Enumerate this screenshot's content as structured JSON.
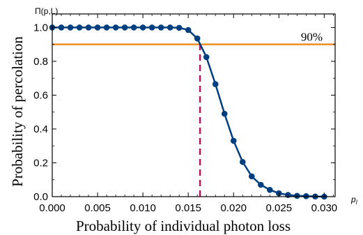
{
  "chart_data": {
    "type": "line",
    "title": "",
    "xlabel": "Probability of individual photon loss",
    "ylabel": "Probability of percolation",
    "y_corner_label": "Π(p,L)",
    "x_corner_label": "p_l",
    "xlim": [
      0.0,
      0.0312
    ],
    "ylim": [
      0.0,
      1.08
    ],
    "x_ticks": [
      0.0,
      0.005,
      0.01,
      0.015,
      0.02,
      0.025,
      0.03
    ],
    "x_tick_labels": [
      "0.000",
      "0.005",
      "0.010",
      "0.015",
      "0.020",
      "0.025",
      "0.030"
    ],
    "y_ticks": [
      0.0,
      0.2,
      0.4,
      0.6,
      0.8,
      1.0
    ],
    "y_tick_labels": [
      "0.0",
      "0.2",
      "0.4",
      "0.6",
      "0.8",
      "1.0"
    ],
    "grid": false,
    "series": [
      {
        "color": "#003f7f",
        "x": [
          0.0,
          0.001,
          0.002,
          0.003,
          0.004,
          0.005,
          0.006,
          0.007,
          0.008,
          0.009,
          0.01,
          0.011,
          0.012,
          0.013,
          0.014,
          0.015,
          0.016,
          0.017,
          0.018,
          0.019,
          0.02,
          0.021,
          0.022,
          0.023,
          0.024,
          0.025,
          0.026,
          0.027,
          0.028,
          0.029,
          0.03
        ],
        "y": [
          1.0,
          1.0,
          1.0,
          1.0,
          1.0,
          1.0,
          1.0,
          1.0,
          1.0,
          1.0,
          1.0,
          1.0,
          1.0,
          1.0,
          0.998,
          0.985,
          0.935,
          0.825,
          0.665,
          0.49,
          0.33,
          0.205,
          0.12,
          0.07,
          0.04,
          0.02,
          0.01,
          0.005,
          0.003,
          0.001,
          0.0
        ]
      }
    ],
    "threshold_line": {
      "y": 0.9,
      "label": "90%",
      "color": "#f08c1e"
    },
    "critical_line": {
      "x": 0.0163,
      "color": "#b0185e",
      "style": "dashed"
    }
  }
}
